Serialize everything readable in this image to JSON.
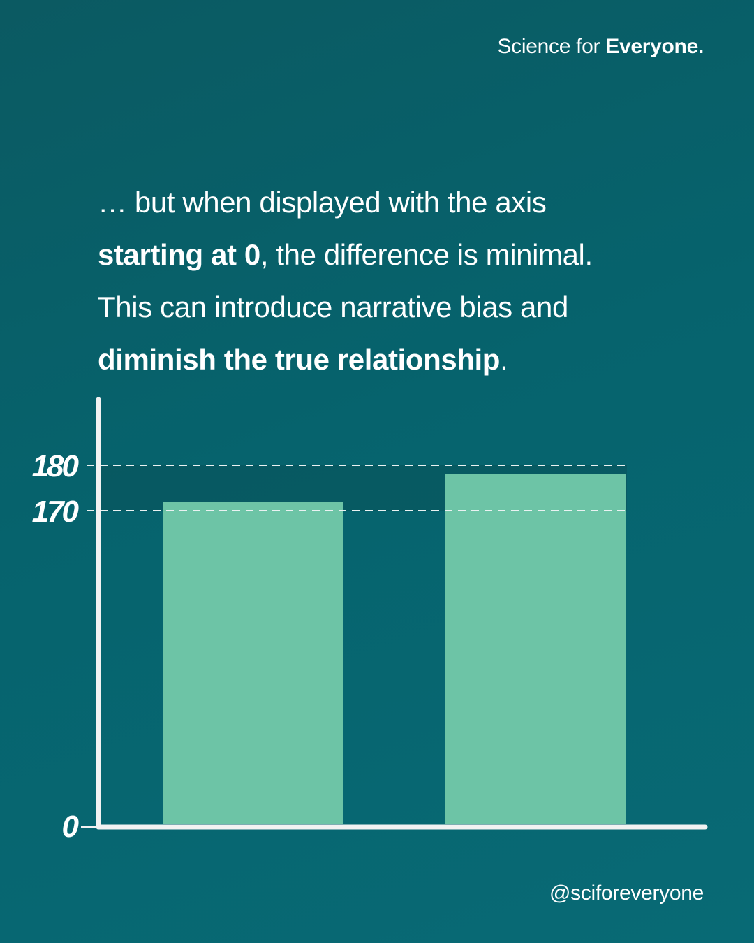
{
  "brand": {
    "prefix": "Science for ",
    "bold": "Everyone."
  },
  "headline": {
    "line1": "… but when displayed with the axis",
    "line2_bold": "starting at 0",
    "line2_rest": ", the difference is minimal.",
    "line3": "This can introduce narrative bias and",
    "line4_bold": "diminish the true relationship",
    "line4_rest": "."
  },
  "chart_data": {
    "type": "bar",
    "categories": [
      "",
      ""
    ],
    "values": [
      172,
      178
    ],
    "ylim": [
      0,
      200
    ],
    "yticks": [
      0,
      170,
      180
    ],
    "reference_lines": [
      170,
      180
    ],
    "colors": {
      "bar": "#6dc4a6",
      "axis": "#f2f2f2",
      "band": "#0a525a"
    },
    "title": "",
    "xlabel": "",
    "ylabel": ""
  },
  "footer": {
    "handle": "@sciforeveryone"
  }
}
